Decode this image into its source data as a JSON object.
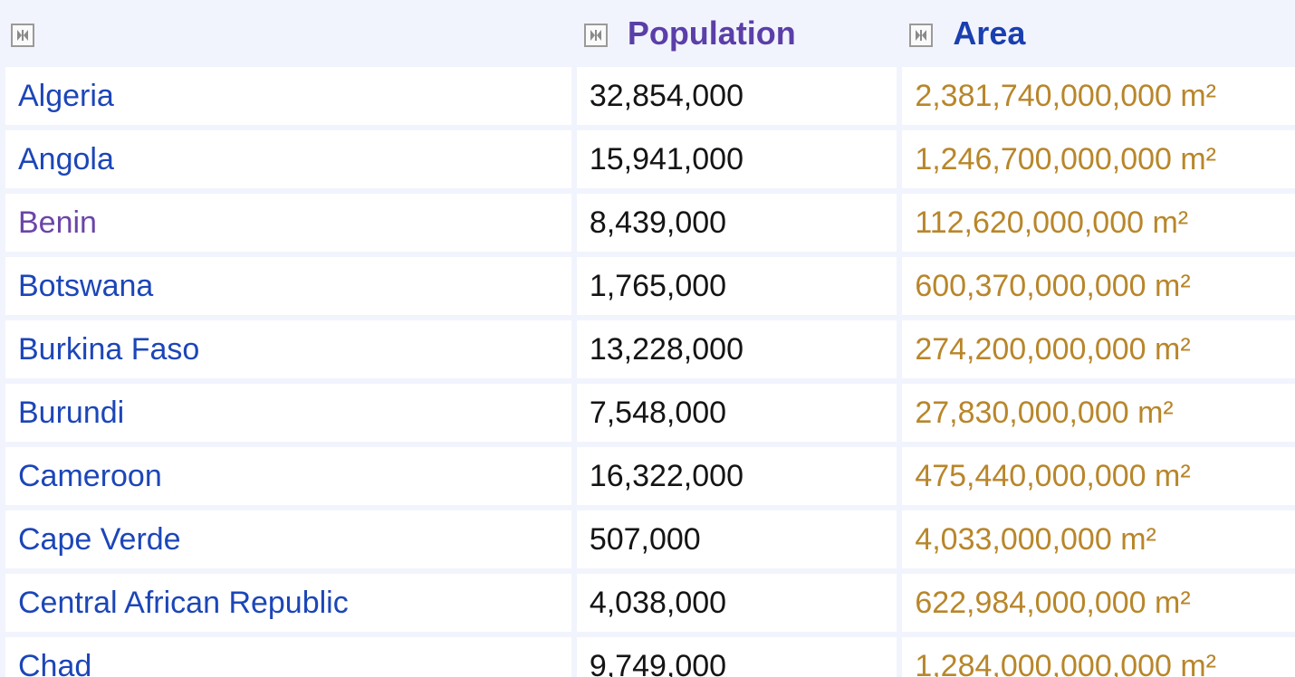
{
  "table": {
    "headers": {
      "country": "",
      "population": "Population",
      "area": "Area"
    },
    "rows": [
      {
        "country": "Algeria",
        "population": "32,854,000",
        "area": "2,381,740,000,000 m²",
        "visited": false
      },
      {
        "country": "Angola",
        "population": "15,941,000",
        "area": "1,246,700,000,000 m²",
        "visited": false
      },
      {
        "country": "Benin",
        "population": "8,439,000",
        "area": "112,620,000,000 m²",
        "visited": true
      },
      {
        "country": "Botswana",
        "population": "1,765,000",
        "area": "600,370,000,000 m²",
        "visited": false
      },
      {
        "country": "Burkina Faso",
        "population": "13,228,000",
        "area": "274,200,000,000 m²",
        "visited": false
      },
      {
        "country": "Burundi",
        "population": "7,548,000",
        "area": "27,830,000,000 m²",
        "visited": false
      },
      {
        "country": "Cameroon",
        "population": "16,322,000",
        "area": "475,440,000,000 m²",
        "visited": false
      },
      {
        "country": "Cape Verde",
        "population": "507,000",
        "area": "4,033,000,000 m²",
        "visited": false
      },
      {
        "country": "Central African Republic",
        "population": "4,038,000",
        "area": "622,984,000,000 m²",
        "visited": false
      },
      {
        "country": "Chad",
        "population": "9,749,000",
        "area": "1,284,000,000,000 m²",
        "visited": false
      }
    ]
  },
  "icons": {
    "sort": "sort-toggle-icon"
  },
  "colors": {
    "link": "#1c46b8",
    "visited_link": "#6b45a8",
    "area_text": "#b8862a",
    "background": "#f2f4fd"
  }
}
